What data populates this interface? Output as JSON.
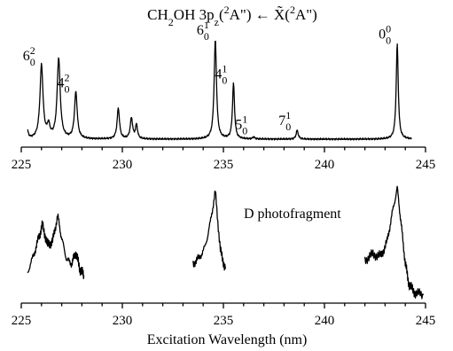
{
  "chart_data": {
    "type": "line",
    "title": "CH2OH 3pz(2A\") ← X̃(2A\")",
    "xlabel": "Excitation Wavelength (nm)",
    "xlim": [
      225,
      245
    ],
    "xticks": [
      225,
      230,
      235,
      240,
      245
    ],
    "panels": [
      {
        "id": "upper",
        "label": "",
        "baseline_start": 225.3,
        "baseline_end": 244.3,
        "peaks": [
          {
            "x": 225.3,
            "y": 0.08,
            "w": 0.06
          },
          {
            "x": 226.0,
            "y": 0.74,
            "w": 0.09
          },
          {
            "x": 226.35,
            "y": 0.12,
            "w": 0.08
          },
          {
            "x": 226.85,
            "y": 0.81,
            "w": 0.09
          },
          {
            "x": 227.7,
            "y": 0.47,
            "w": 0.08
          },
          {
            "x": 229.8,
            "y": 0.31,
            "w": 0.07
          },
          {
            "x": 230.45,
            "y": 0.21,
            "w": 0.07
          },
          {
            "x": 230.7,
            "y": 0.14,
            "w": 0.06
          },
          {
            "x": 234.6,
            "y": 1.0,
            "w": 0.07
          },
          {
            "x": 235.5,
            "y": 0.56,
            "w": 0.06
          },
          {
            "x": 236.5,
            "y": 0.02,
            "w": 0.06
          },
          {
            "x": 238.65,
            "y": 0.09,
            "w": 0.06
          },
          {
            "x": 243.6,
            "y": 0.96,
            "w": 0.06
          }
        ],
        "peak_labels": [
          {
            "x": 226.0,
            "y": 0.74,
            "main": "6",
            "sup": "2",
            "sub": "0"
          },
          {
            "x": 227.7,
            "y": 0.47,
            "main": "4",
            "sup": "2",
            "sub": "0"
          },
          {
            "x": 234.6,
            "y": 1.0,
            "main": "6",
            "sup": "1",
            "sub": "0"
          },
          {
            "x": 235.5,
            "y": 0.56,
            "main": "4",
            "sup": "1",
            "sub": "0"
          },
          {
            "x": 236.5,
            "y": 0.05,
            "main": "5",
            "sup": "1",
            "sub": "0"
          },
          {
            "x": 238.65,
            "y": 0.09,
            "main": "7",
            "sup": "1",
            "sub": "0"
          },
          {
            "x": 243.6,
            "y": 0.96,
            "main": "0",
            "sup": "0",
            "sub": "0"
          }
        ]
      },
      {
        "id": "lower",
        "label": "D photofragment",
        "segments": [
          {
            "x": [
              225.3,
              225.6,
              225.85,
              226.05,
              226.3,
              226.55,
              226.8,
              227.0,
              227.25,
              227.5,
              227.7,
              227.9,
              228.1
            ],
            "y": [
              0.08,
              0.26,
              0.45,
              0.6,
              0.38,
              0.42,
              0.7,
              0.45,
              0.22,
              0.18,
              0.3,
              0.12,
              0.05
            ]
          },
          {
            "x": [
              233.5,
              233.8,
              234.1,
              234.35,
              234.6,
              234.85,
              235.1
            ],
            "y": [
              0.18,
              0.24,
              0.36,
              0.62,
              0.96,
              0.32,
              0.12
            ]
          },
          {
            "x": [
              242.0,
              242.4,
              242.8,
              243.1,
              243.35,
              243.6,
              243.8,
              244.0,
              244.2,
              244.5,
              244.9
            ],
            "y": [
              0.22,
              0.28,
              0.26,
              0.42,
              0.72,
              1.0,
              0.6,
              0.18,
              -0.06,
              -0.14,
              -0.16
            ]
          }
        ]
      }
    ]
  }
}
